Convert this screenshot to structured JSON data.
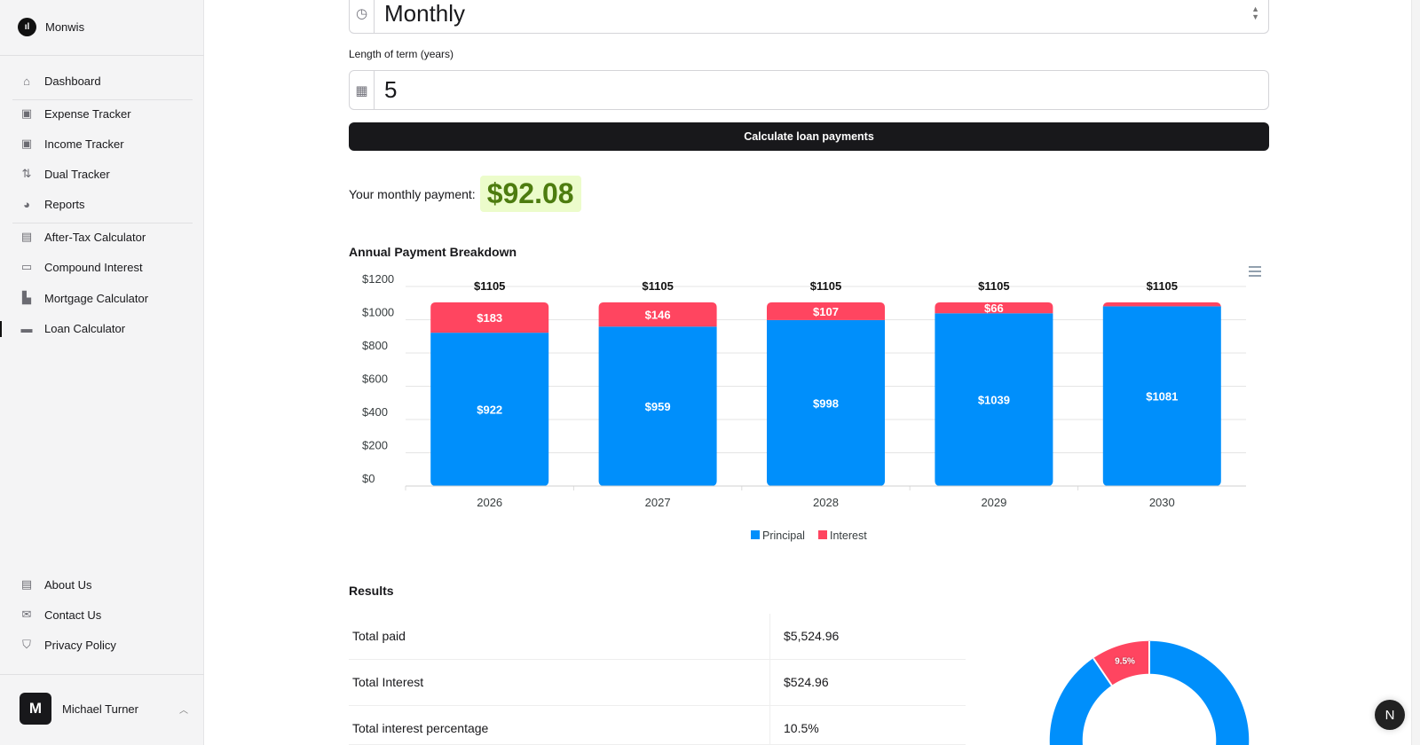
{
  "app": {
    "name": "Monwis"
  },
  "sidebar": {
    "items": [
      {
        "label": "Dashboard",
        "icon": "home-icon"
      },
      {
        "label": "Expense Tracker",
        "icon": "chart-board-icon"
      },
      {
        "label": "Income Tracker",
        "icon": "trend-board-icon"
      },
      {
        "label": "Dual Tracker",
        "icon": "arrows-up-down-icon"
      },
      {
        "label": "Reports",
        "icon": "pie-chart-icon"
      },
      {
        "label": "After-Tax Calculator",
        "icon": "calculator-icon"
      },
      {
        "label": "Compound Interest",
        "icon": "money-icon"
      },
      {
        "label": "Mortgage Calculator",
        "icon": "building-icon"
      },
      {
        "label": "Loan Calculator",
        "icon": "credit-card-icon",
        "active": true
      }
    ],
    "footer_items": [
      {
        "label": "About Us",
        "icon": "id-card-icon"
      },
      {
        "label": "Contact Us",
        "icon": "mail-open-icon"
      },
      {
        "label": "Privacy Policy",
        "icon": "shield-check-icon"
      }
    ],
    "user": {
      "initial": "M",
      "name": "Michael Turner"
    }
  },
  "form": {
    "frequency": "Monthly",
    "term_label": "Length of term (years)",
    "term": "5",
    "submit": "Calculate loan payments"
  },
  "payment": {
    "label": "Your monthly payment:",
    "value": "$92.08"
  },
  "colors": {
    "principal": "#008ffb",
    "interest": "#ff4560",
    "payment_bg": "#ecfccb",
    "payment_text": "#4d7c0f"
  },
  "chart_data": {
    "type": "bar",
    "stacked": true,
    "title": "Annual Payment Breakdown",
    "categories": [
      "2026",
      "2027",
      "2028",
      "2029",
      "2030"
    ],
    "series": [
      {
        "name": "Principal",
        "values": [
          922,
          959,
          998,
          1039,
          1081
        ]
      },
      {
        "name": "Interest",
        "values": [
          183,
          146,
          107,
          66,
          24
        ]
      }
    ],
    "totals": [
      1105,
      1105,
      1105,
      1105,
      1105
    ],
    "ylim": [
      0,
      1200
    ],
    "yticks": [
      "$0",
      "$200",
      "$400",
      "$600",
      "$800",
      "$1000",
      "$1200"
    ],
    "grid": true,
    "legend": "bottom"
  },
  "results": {
    "title": "Results",
    "rows": [
      {
        "label": "Total paid",
        "value": "$5,524.96"
      },
      {
        "label": "Total Interest",
        "value": "$524.96"
      },
      {
        "label": "Total interest percentage",
        "value": "10.5%"
      }
    ]
  },
  "donut": {
    "slices": [
      {
        "name": "Principal",
        "value": 90.5
      },
      {
        "name": "Interest",
        "value": 9.5,
        "label": "9.5%"
      }
    ]
  },
  "badge": "N"
}
